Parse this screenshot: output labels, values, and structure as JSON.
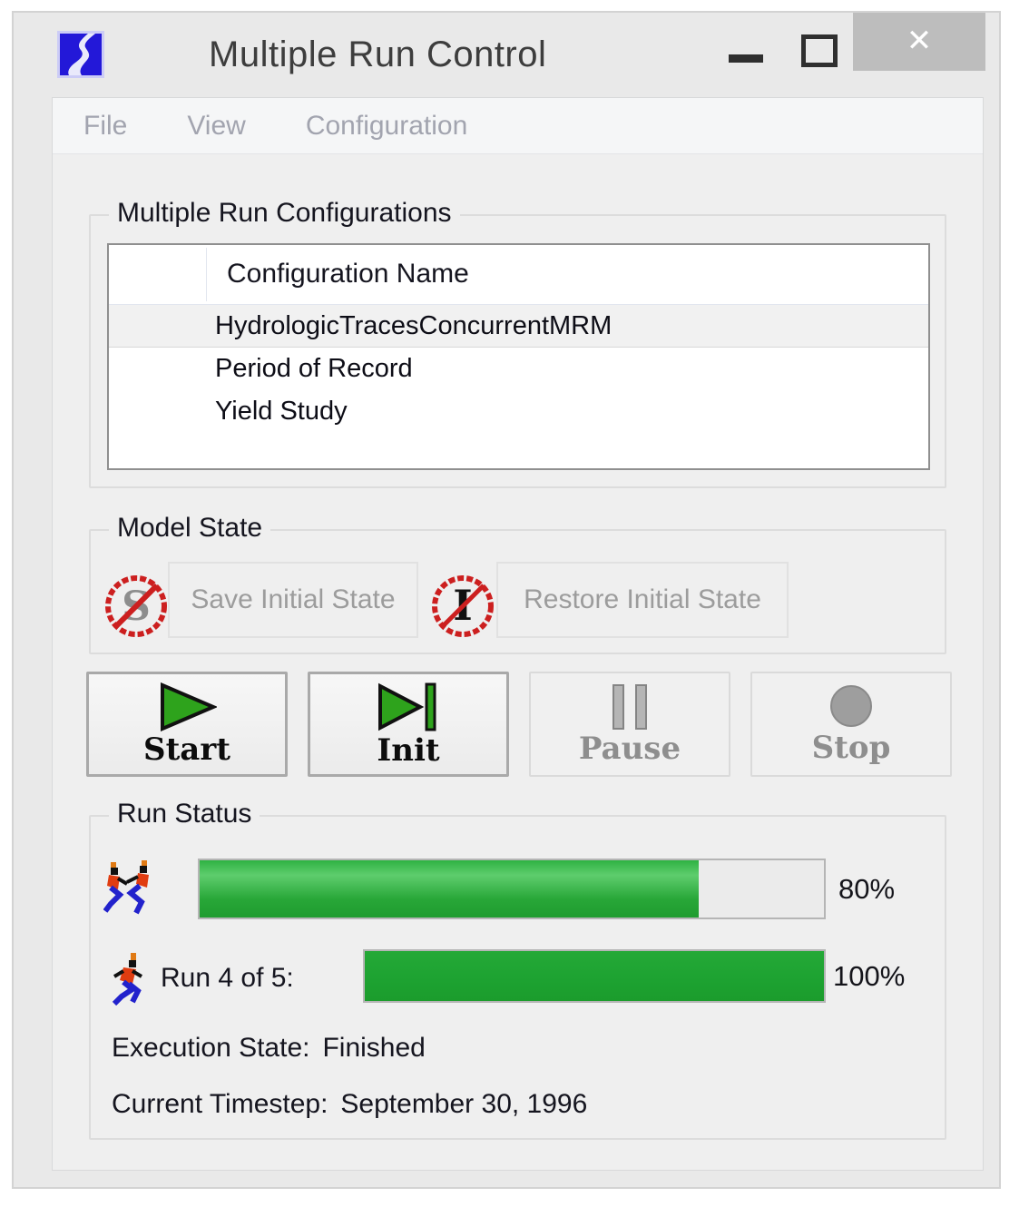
{
  "window": {
    "title": "Multiple Run Control",
    "app_icon": "riverware-logo"
  },
  "icons": {
    "close": "✕"
  },
  "menu": {
    "items": [
      "File",
      "View",
      "Configuration"
    ]
  },
  "config_group": {
    "title": "Multiple Run Configurations",
    "table": {
      "name_column": "Configuration Name",
      "rows": [
        {
          "name": "HydrologicTracesConcurrentMRM",
          "selected": true
        },
        {
          "name": "Period of Record",
          "selected": false
        },
        {
          "name": "Yield Study",
          "selected": false
        }
      ]
    }
  },
  "model_state": {
    "title": "Model State",
    "save_button": "Save Initial State",
    "restore_button": "Restore Initial State"
  },
  "transport": {
    "start_label": "Start",
    "init_label": "Init",
    "pause_label": "Pause",
    "stop_label": "Stop"
  },
  "run_status": {
    "title": "Run Status",
    "overall": {
      "value": 80,
      "percent": "80%"
    },
    "run": {
      "label": "Run 4 of 5:",
      "value": 100,
      "percent": "100%"
    },
    "execution_state_label": "Execution State:",
    "execution_state_value": "Finished",
    "timestep_label": "Current Timestep:",
    "timestep_value": "September 30, 1996"
  },
  "colors": {
    "progress_green": "#1fa634",
    "logo_blue": "#2318d8",
    "prohibit_red": "#cc1f1f",
    "disabled_text": "#9c9c9c"
  }
}
